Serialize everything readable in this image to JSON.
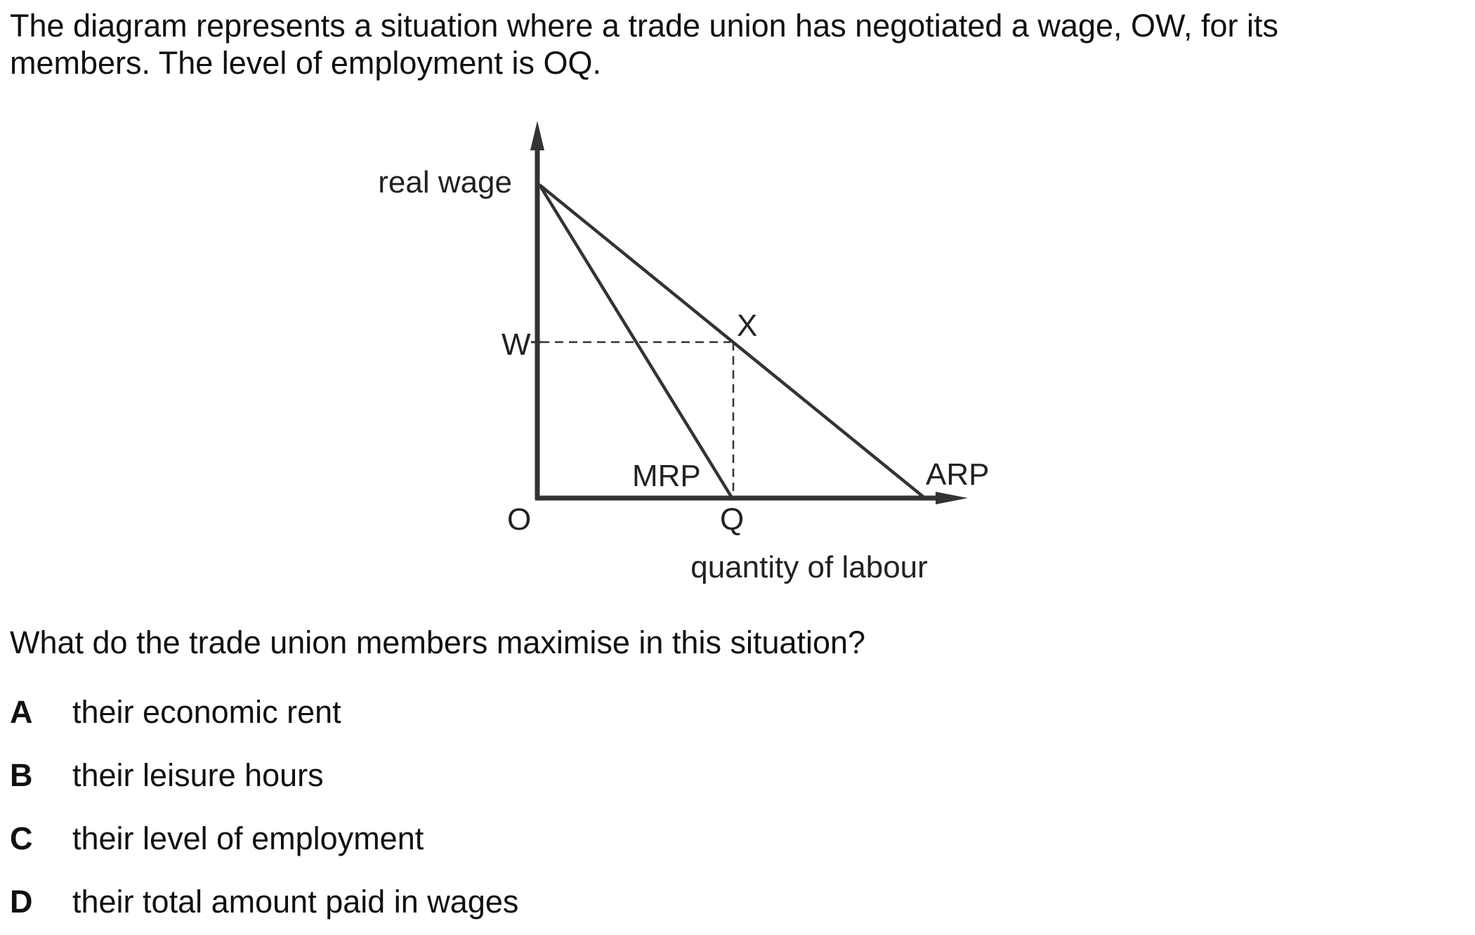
{
  "intro": {
    "line1": "The diagram represents a situation where a trade union has negotiated a wage, OW, for its",
    "line2": "members. The level of employment is OQ."
  },
  "diagram": {
    "y_axis_label": "real wage",
    "x_axis_label": "quantity of labour",
    "origin_label": "O",
    "wage_label": "W",
    "quantity_label": "Q",
    "point_label": "X",
    "mrp_label": "MRP",
    "arp_label": "ARP"
  },
  "question": {
    "text": "What do the trade union members maximise in this situation?",
    "options": [
      {
        "letter": "A",
        "text": "their economic rent"
      },
      {
        "letter": "B",
        "text": "their leisure hours"
      },
      {
        "letter": "C",
        "text": "their level of employment"
      },
      {
        "letter": "D",
        "text": "their total amount paid in wages"
      }
    ]
  }
}
